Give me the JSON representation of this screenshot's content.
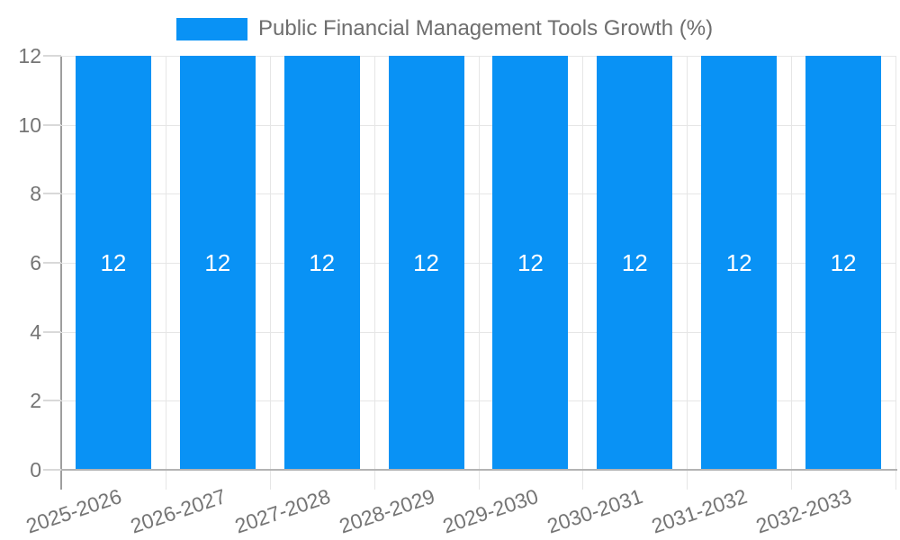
{
  "page": {
    "background_color": "#ffffff"
  },
  "legend": {
    "position": "top",
    "swatch_color": "#0992f5"
  },
  "chart_data": {
    "type": "bar",
    "title": "Public Financial Management Tools Growth (%)",
    "categories": [
      "2025-2026",
      "2026-2027",
      "2027-2028",
      "2028-2029",
      "2029-2030",
      "2030-2031",
      "2031-2032",
      "2032-2033"
    ],
    "series": [
      {
        "name": "Public Financial Management Tools Growth (%)",
        "values": [
          12,
          12,
          12,
          12,
          12,
          12,
          12,
          12
        ],
        "color": "#0992f5"
      }
    ],
    "bar_value_labels": [
      "12",
      "12",
      "12",
      "12",
      "12",
      "12",
      "12",
      "12"
    ],
    "xlabel": "",
    "ylabel": "",
    "ylim": [
      0,
      12
    ],
    "yticks": [
      0,
      2,
      4,
      6,
      8,
      10,
      12
    ],
    "grid": true,
    "legend_position": "top",
    "x_label_rotation_deg": -18.5,
    "colors": {
      "bar": "#0992f5",
      "bar_value_label": "#ffffff",
      "axis_text": "#757575",
      "legend_text": "#6e6e6e",
      "gridline": "#e6e6e6",
      "tick_stub": "#d9d9d9",
      "y_axis_line": "#9e9e9e",
      "x_baseline": "#b3b3b3"
    }
  }
}
